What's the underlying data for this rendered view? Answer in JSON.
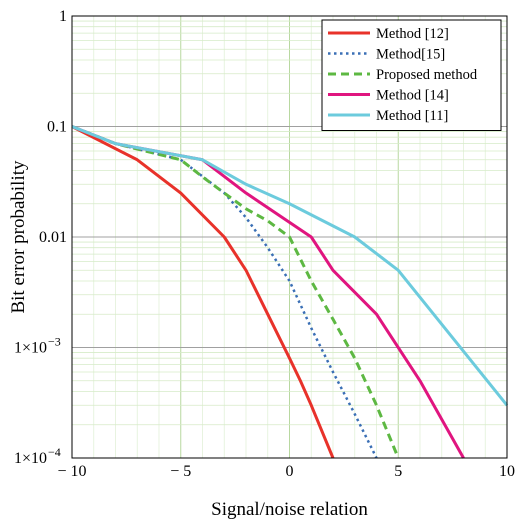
{
  "chart_data": {
    "type": "line",
    "xlabel": "Signal/noise relation",
    "ylabel": "Bit error probability",
    "xlim": [
      -10,
      10
    ],
    "ylim": [
      0.0001,
      1
    ],
    "yscale": "log",
    "grid": true,
    "legend_position": "top-right",
    "x_ticks": [
      {
        "value": -10,
        "label": "− 10"
      },
      {
        "value": -5,
        "label": "− 5"
      },
      {
        "value": 0,
        "label": "0"
      },
      {
        "value": 5,
        "label": "5"
      },
      {
        "value": 10,
        "label": "10"
      }
    ],
    "y_ticks": [
      {
        "value": 1,
        "base": "1",
        "exp": ""
      },
      {
        "value": 0.1,
        "base": "0.1",
        "exp": ""
      },
      {
        "value": 0.01,
        "base": "0.01",
        "exp": ""
      },
      {
        "value": 0.001,
        "base": "1×10",
        "exp": "−3"
      },
      {
        "value": 0.0001,
        "base": "1×10",
        "exp": "−4"
      }
    ],
    "series": [
      {
        "name": "Method [12]",
        "color": "#e8322a",
        "dash": "solid",
        "points": [
          [
            -10,
            0.1
          ],
          [
            -7,
            0.05
          ],
          [
            -5,
            0.025
          ],
          [
            -3,
            0.01
          ],
          [
            -2,
            0.005
          ],
          [
            0,
            0.0008
          ],
          [
            0.5,
            0.0005
          ],
          [
            1,
            0.0003
          ],
          [
            2,
            0.0001
          ]
        ]
      },
      {
        "name": "Method[15]",
        "color": "#3a6fb5",
        "dash": "dotted",
        "points": [
          [
            -10,
            0.1
          ],
          [
            -8,
            0.07
          ],
          [
            -5,
            0.05
          ],
          [
            -3,
            0.025
          ],
          [
            -2,
            0.015
          ],
          [
            -1,
            0.008
          ],
          [
            0,
            0.004
          ],
          [
            1,
            0.0015
          ],
          [
            2,
            0.0006
          ],
          [
            3,
            0.00025
          ],
          [
            4,
            0.0001
          ]
        ]
      },
      {
        "name": "Proposed method",
        "color": "#5db842",
        "dash": "dashed",
        "points": [
          [
            -10,
            0.1
          ],
          [
            -8,
            0.07
          ],
          [
            -5,
            0.05
          ],
          [
            -4,
            0.035
          ],
          [
            -3,
            0.025
          ],
          [
            -2,
            0.018
          ],
          [
            -1,
            0.014
          ],
          [
            0,
            0.01
          ],
          [
            1,
            0.004
          ],
          [
            2,
            0.0018
          ],
          [
            3,
            0.0008
          ],
          [
            4,
            0.0003
          ],
          [
            5,
            0.0001
          ]
        ]
      },
      {
        "name": "Method [14]",
        "color": "#e0157f",
        "dash": "solid",
        "points": [
          [
            -10,
            0.1
          ],
          [
            -8,
            0.07
          ],
          [
            -4,
            0.05
          ],
          [
            -2,
            0.025
          ],
          [
            1,
            0.01
          ],
          [
            2,
            0.005
          ],
          [
            4,
            0.002
          ],
          [
            6,
            0.0005
          ],
          [
            8,
            0.0001
          ]
        ]
      },
      {
        "name": "Method [11]",
        "color": "#6ccbdd",
        "dash": "solid",
        "points": [
          [
            -10,
            0.1
          ],
          [
            -8,
            0.07
          ],
          [
            -4,
            0.05
          ],
          [
            -2,
            0.03
          ],
          [
            0,
            0.02
          ],
          [
            3,
            0.01
          ],
          [
            5,
            0.005
          ],
          [
            10,
            0.0003
          ]
        ]
      }
    ]
  }
}
